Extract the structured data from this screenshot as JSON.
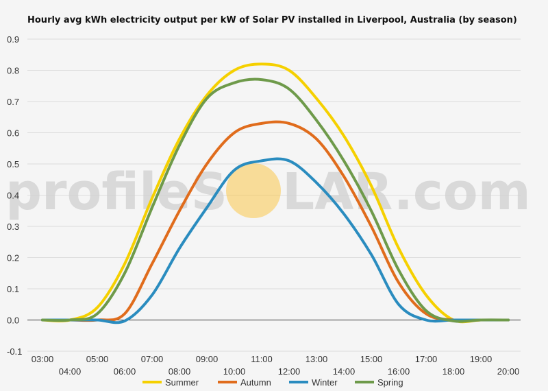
{
  "chart_data": {
    "type": "line",
    "title": "Hourly avg kWh electricity output per kW of Solar PV installed in Liverpool, Australia (by season)",
    "x_labels": [
      "03:00",
      "04:00",
      "05:00",
      "06:00",
      "07:00",
      "08:00",
      "09:00",
      "10:00",
      "11:00",
      "12:00",
      "13:00",
      "14:00",
      "15:00",
      "16:00",
      "17:00",
      "18:00",
      "19:00",
      "20:00"
    ],
    "y_ticks": [
      -0.1,
      0.0,
      0.1,
      0.2,
      0.3,
      0.4,
      0.5,
      0.6,
      0.7,
      0.8,
      0.9
    ],
    "ylim": [
      -0.1,
      0.9
    ],
    "grid": true,
    "legend_position": "bottom",
    "series": [
      {
        "name": "Summer",
        "color": "#f5d000",
        "values": [
          0.0,
          0.0,
          0.04,
          0.18,
          0.39,
          0.58,
          0.72,
          0.8,
          0.82,
          0.8,
          0.71,
          0.59,
          0.43,
          0.23,
          0.08,
          0.0,
          0.0,
          0.0
        ]
      },
      {
        "name": "Autumn",
        "color": "#e06c1c",
        "values": [
          0.0,
          0.0,
          0.0,
          0.02,
          0.18,
          0.35,
          0.5,
          0.6,
          0.63,
          0.63,
          0.58,
          0.46,
          0.3,
          0.12,
          0.02,
          0.0,
          0.0,
          0.0
        ]
      },
      {
        "name": "Winter",
        "color": "#2a8cbf",
        "values": [
          0.0,
          0.0,
          0.0,
          -0.003,
          0.08,
          0.23,
          0.36,
          0.48,
          0.51,
          0.51,
          0.44,
          0.34,
          0.21,
          0.05,
          0.0,
          0.0,
          0.0,
          0.0
        ]
      },
      {
        "name": "Spring",
        "color": "#6e9a4a",
        "values": [
          0.0,
          0.0,
          0.02,
          0.15,
          0.36,
          0.56,
          0.71,
          0.76,
          0.77,
          0.74,
          0.64,
          0.51,
          0.35,
          0.16,
          0.03,
          -0.003,
          0.0,
          0.0
        ]
      }
    ]
  },
  "watermark": {
    "text_left": "profileS",
    "text_right": "LAR.com",
    "sun_color": "#f9c64a"
  }
}
